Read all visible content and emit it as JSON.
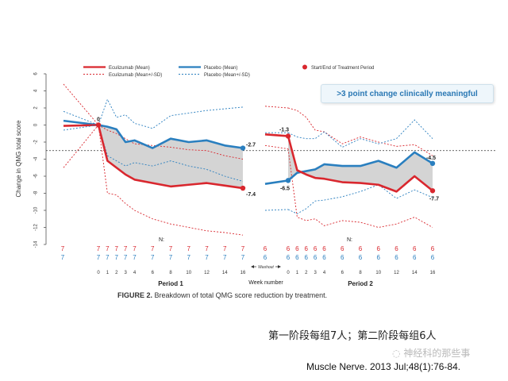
{
  "chart_data": {
    "type": "line",
    "ylabel": "Change in QMG total score",
    "xlabel": "Week number",
    "ylim": [
      -14,
      6
    ],
    "yticks": [
      6,
      4,
      2,
      0,
      -2,
      -4,
      -6,
      -8,
      -10,
      -12,
      -14
    ],
    "reference_line": -3,
    "legend_position": "top",
    "legend": [
      {
        "label": "Eculizumab (Mean)",
        "style": "solid",
        "color": "#d9272e"
      },
      {
        "label": "Eculizumab (Mean+/-SD)",
        "style": "dashed",
        "color": "#d9272e"
      },
      {
        "label": "Placebo (Mean)",
        "style": "solid",
        "color": "#2a7fbf"
      },
      {
        "label": "Placebo (Mean+/-SD)",
        "style": "dashed",
        "color": "#2a7fbf"
      },
      {
        "label": "Start/End of Treatment Period",
        "style": "marker",
        "color": "#d9272e"
      }
    ],
    "callout": ">3 point change clinically meaningful",
    "n_label": "N:",
    "washout_label": "Washout",
    "periods": [
      {
        "name": "Period 1",
        "x_ticks": [
          0,
          1,
          2,
          3,
          4,
          6,
          8,
          10,
          12,
          14,
          16
        ],
        "x": [
          0,
          1,
          2,
          3,
          4,
          6,
          8,
          10,
          12,
          14,
          16
        ],
        "n_eculizumab": [
          "7",
          "7",
          "7",
          "7",
          "7",
          "7",
          "7",
          "7",
          "7",
          "7",
          "7"
        ],
        "n_placebo": [
          "7",
          "7",
          "7",
          "7",
          "7",
          "7",
          "7",
          "7",
          "7",
          "7",
          "7"
        ],
        "eculizumab_mean": [
          0,
          -4.2,
          -5.0,
          -5.8,
          -6.4,
          -6.8,
          -7.2,
          -7.0,
          -6.8,
          -7.1,
          -7.4
        ],
        "eculizumab_upper": [
          0,
          -0.6,
          -1.0,
          -1.6,
          -2.2,
          -2.4,
          -2.6,
          -2.9,
          -3.0,
          -3.6,
          -4.0
        ],
        "eculizumab_lower": [
          0,
          -8.0,
          -8.2,
          -9.2,
          -10.0,
          -11.0,
          -11.6,
          -12.0,
          -12.4,
          -12.6,
          -12.9
        ],
        "placebo_mean": [
          0,
          -0.2,
          -0.5,
          -2.0,
          -1.8,
          -2.7,
          -1.6,
          -2.0,
          -1.8,
          -2.4,
          -2.7
        ],
        "placebo_upper": [
          0,
          3.0,
          0.9,
          1.2,
          0.2,
          -0.4,
          1.1,
          1.4,
          1.7,
          1.9,
          2.1
        ],
        "placebo_lower": [
          0,
          -3.6,
          -4.2,
          -4.8,
          -4.4,
          -4.8,
          -4.2,
          -4.8,
          -5.2,
          -6.0,
          -6.6
        ],
        "start_end": {
          "eculizumab": [
            0,
            -7.4
          ],
          "placebo": [
            0,
            -2.7
          ],
          "labels": {
            "start": "0",
            "eculizumab_end": "-7.4",
            "placebo_end": "-2.7"
          }
        }
      },
      {
        "name": "Period 2",
        "x_ticks": [
          0,
          1,
          2,
          3,
          4,
          6,
          8,
          10,
          12,
          14,
          16
        ],
        "x": [
          0,
          1,
          2,
          3,
          4,
          6,
          8,
          10,
          12,
          14,
          16
        ],
        "n_eculizumab": [
          "6",
          "6",
          "6",
          "6",
          "6",
          "6",
          "6",
          "6",
          "6",
          "6",
          "6"
        ],
        "n_placebo": [
          "6",
          "6",
          "6",
          "6",
          "6",
          "6",
          "6",
          "6",
          "6",
          "6",
          "6"
        ],
        "eculizumab_mean": [
          -1.3,
          -5.3,
          -5.8,
          -6.2,
          -6.3,
          -6.7,
          -6.8,
          -7.0,
          -7.8,
          -6.0,
          -7.7
        ],
        "eculizumab_upper": [
          2.0,
          1.7,
          0.9,
          -0.6,
          -0.8,
          -2.2,
          -1.4,
          -2.0,
          -2.5,
          -2.3,
          -3.6
        ],
        "eculizumab_lower": [
          -2.8,
          -10.8,
          -11.2,
          -11.0,
          -11.8,
          -11.2,
          -11.4,
          -12.0,
          -11.6,
          -10.8,
          -12.0
        ],
        "placebo_mean": [
          -6.5,
          -5.6,
          -5.4,
          -5.2,
          -4.6,
          -4.8,
          -4.8,
          -4.2,
          -5.0,
          -3.2,
          -4.5
        ],
        "placebo_upper": [
          -0.9,
          -1.4,
          -1.6,
          -1.6,
          -0.8,
          -2.6,
          -1.6,
          -2.2,
          -1.6,
          0.6,
          -1.6
        ],
        "placebo_lower": [
          -9.9,
          -10.4,
          -9.8,
          -8.9,
          -8.8,
          -8.4,
          -7.8,
          -7.0,
          -8.6,
          -7.6,
          -8.5
        ],
        "start_end": {
          "eculizumab": [
            -1.3,
            -7.7
          ],
          "placebo": [
            -6.5,
            -4.5
          ],
          "labels": {
            "eculizumab_start": "-1.3",
            "placebo_start": "-6.5",
            "eculizumab_end": "-7.7",
            "placebo_end": "-4.5"
          }
        }
      }
    ]
  },
  "figure_caption": {
    "label": "FIGURE 2.",
    "text": "Breakdown of total QMG score reduction by treatment."
  },
  "caption_cn": "第一阶段每组7人；第二阶段每组6人",
  "watermark": "神经科的那些事",
  "citation": "Muscle Nerve. 2013 Jul;48(1):76-84.",
  "colors": {
    "eculizumab": "#d9272e",
    "placebo": "#2a7fbf",
    "fill": "#d4d4d4",
    "reference": "#333333"
  }
}
